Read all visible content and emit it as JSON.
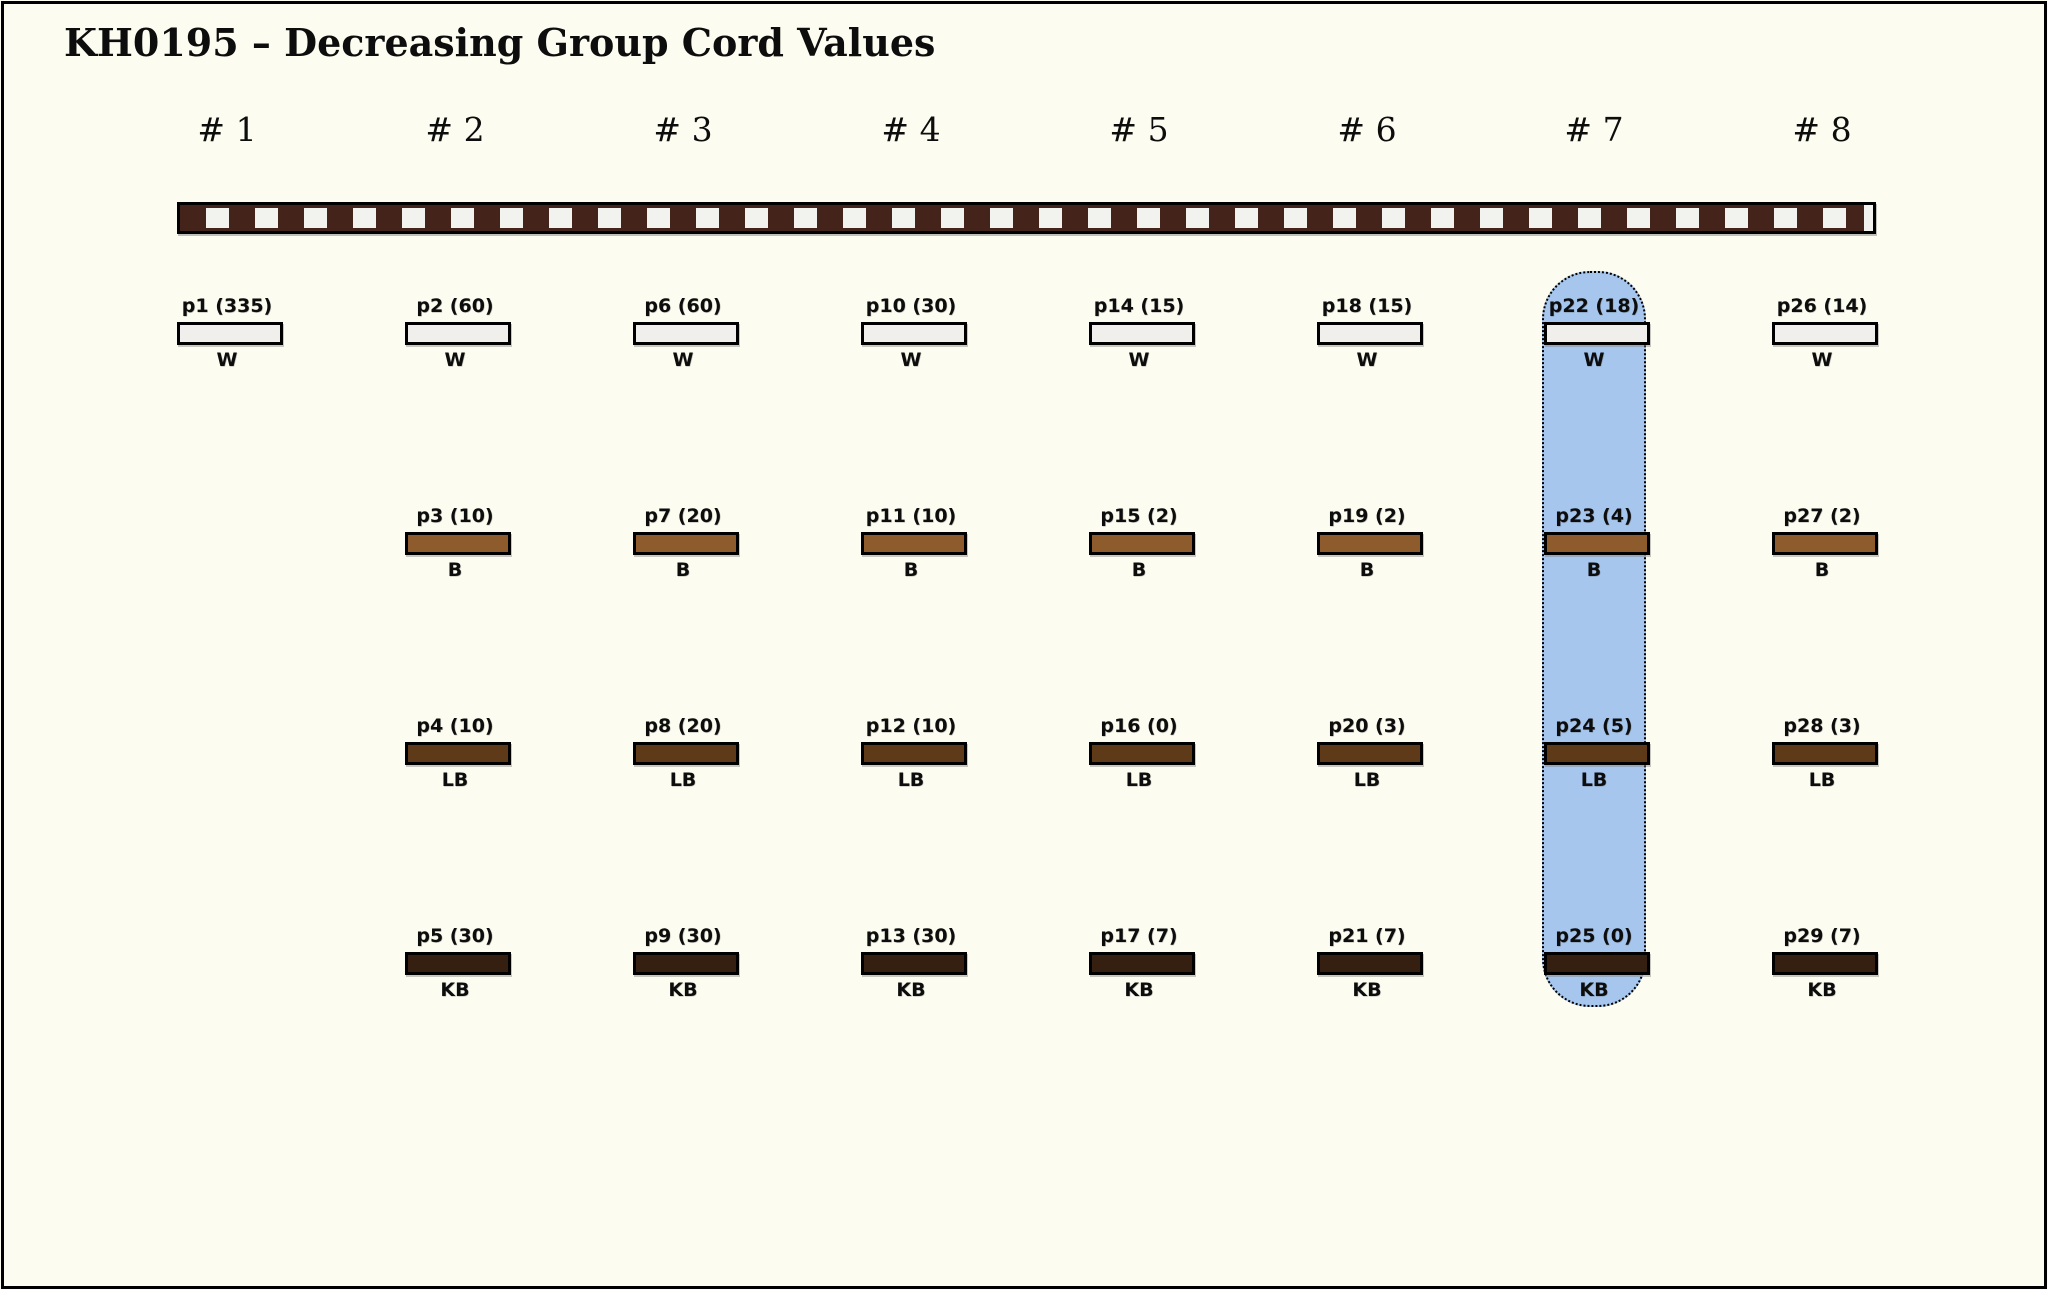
{
  "title": "KH0195 – Decreasing Group Cord Values",
  "colors": {
    "background": "#fcfcf0",
    "frame_border": "#000000",
    "cord_dark": "#44241a",
    "cord_light": "#f2f2ee",
    "highlight_fill": "#a6c6ee",
    "highlight_border": "#000000",
    "bar_border": "#000000",
    "text": "#0d0d0d"
  },
  "rows": [
    {
      "key": "W",
      "label": "W",
      "fill": "#f0efec"
    },
    {
      "key": "B",
      "label": "B",
      "fill": "#8d5b2c"
    },
    {
      "key": "LB",
      "label": "LB",
      "fill": "#5e3a18"
    },
    {
      "key": "KB",
      "label": "KB",
      "fill": "#341f10"
    }
  ],
  "columns": [
    {
      "label": "# 1",
      "highlighted": false,
      "cells": {
        "W": {
          "name": "p1",
          "value": 335,
          "label": "p1 (335)"
        }
      }
    },
    {
      "label": "# 2",
      "highlighted": false,
      "cells": {
        "W": {
          "name": "p2",
          "value": 60,
          "label": "p2 (60)"
        },
        "B": {
          "name": "p3",
          "value": 10,
          "label": "p3 (10)"
        },
        "LB": {
          "name": "p4",
          "value": 10,
          "label": "p4 (10)"
        },
        "KB": {
          "name": "p5",
          "value": 30,
          "label": "p5 (30)"
        }
      }
    },
    {
      "label": "# 3",
      "highlighted": false,
      "cells": {
        "W": {
          "name": "p6",
          "value": 60,
          "label": "p6 (60)"
        },
        "B": {
          "name": "p7",
          "value": 20,
          "label": "p7 (20)"
        },
        "LB": {
          "name": "p8",
          "value": 20,
          "label": "p8 (20)"
        },
        "KB": {
          "name": "p9",
          "value": 30,
          "label": "p9 (30)"
        }
      }
    },
    {
      "label": "# 4",
      "highlighted": false,
      "cells": {
        "W": {
          "name": "p10",
          "value": 30,
          "label": "p10 (30)"
        },
        "B": {
          "name": "p11",
          "value": 10,
          "label": "p11 (10)"
        },
        "LB": {
          "name": "p12",
          "value": 10,
          "label": "p12 (10)"
        },
        "KB": {
          "name": "p13",
          "value": 30,
          "label": "p13 (30)"
        }
      }
    },
    {
      "label": "# 5",
      "highlighted": false,
      "cells": {
        "W": {
          "name": "p14",
          "value": 15,
          "label": "p14 (15)"
        },
        "B": {
          "name": "p15",
          "value": 2,
          "label": "p15 (2)"
        },
        "LB": {
          "name": "p16",
          "value": 0,
          "label": "p16 (0)"
        },
        "KB": {
          "name": "p17",
          "value": 7,
          "label": "p17 (7)"
        }
      }
    },
    {
      "label": "# 6",
      "highlighted": false,
      "cells": {
        "W": {
          "name": "p18",
          "value": 15,
          "label": "p18 (15)"
        },
        "B": {
          "name": "p19",
          "value": 2,
          "label": "p19 (2)"
        },
        "LB": {
          "name": "p20",
          "value": 3,
          "label": "p20 (3)"
        },
        "KB": {
          "name": "p21",
          "value": 7,
          "label": "p21 (7)"
        }
      }
    },
    {
      "label": "# 7",
      "highlighted": true,
      "cells": {
        "W": {
          "name": "p22",
          "value": 18,
          "label": "p22 (18)"
        },
        "B": {
          "name": "p23",
          "value": 4,
          "label": "p23 (4)"
        },
        "LB": {
          "name": "p24",
          "value": 5,
          "label": "p24 (5)"
        },
        "KB": {
          "name": "p25",
          "value": 0,
          "label": "p25 (0)"
        }
      }
    },
    {
      "label": "# 8",
      "highlighted": false,
      "cells": {
        "W": {
          "name": "p26",
          "value": 14,
          "label": "p26 (14)"
        },
        "B": {
          "name": "p27",
          "value": 2,
          "label": "p27 (2)"
        },
        "LB": {
          "name": "p28",
          "value": 3,
          "label": "p28 (3)"
        },
        "KB": {
          "name": "p29",
          "value": 7,
          "label": "p29 (7)"
        }
      }
    }
  ]
}
